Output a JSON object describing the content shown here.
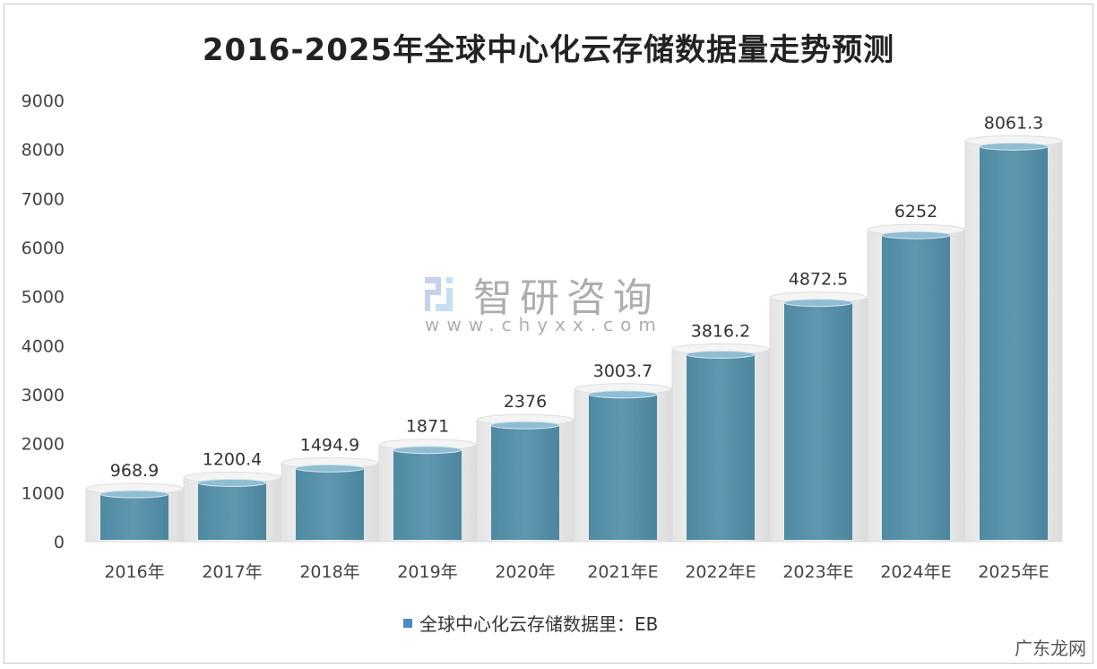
{
  "chart_data": {
    "type": "bar",
    "title": "2016-2025年全球中心化云存储数据量走势预测",
    "categories": [
      "2016年",
      "2017年",
      "2018年",
      "2019年",
      "2020年",
      "2021年E",
      "2022年E",
      "2023年E",
      "2024年E",
      "2025年E"
    ],
    "series": [
      {
        "name": "全球中心化云存储数据里：EB",
        "values": [
          968.9,
          1200.4,
          1494.9,
          1871,
          2376,
          3003.7,
          3816.2,
          4872.5,
          6252,
          8061.3
        ]
      }
    ],
    "value_labels": [
      "968.9",
      "1200.4",
      "1494.9",
      "1871",
      "2376",
      "3003.7",
      "3816.2",
      "4872.5",
      "6252",
      "8061.3"
    ],
    "yticks": [
      0,
      1000,
      2000,
      3000,
      4000,
      5000,
      6000,
      7000,
      8000,
      9000
    ],
    "ylim": [
      0,
      9000
    ],
    "grid": false,
    "legend_position": "bottom",
    "colors": {
      "bar": "#5b93ab",
      "bar_top": "#8fbdd2",
      "legend": "#4a8bc4"
    }
  },
  "watermark": {
    "name": "智研咨询",
    "url": "www.chyxx.com"
  },
  "corner_mark": "广东龙网"
}
